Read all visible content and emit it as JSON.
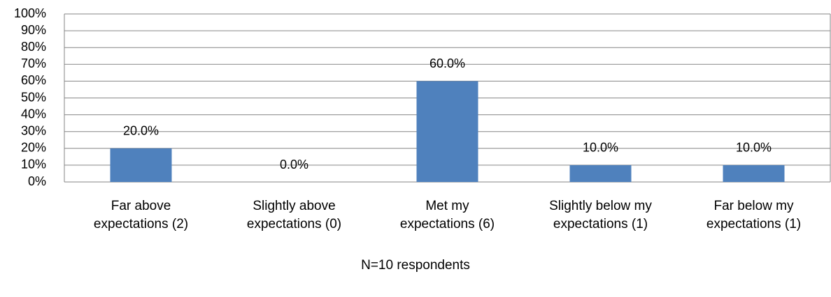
{
  "chart_data": {
    "type": "bar",
    "categories": [
      "Far above\nexpectations (2)",
      "Slightly above\nexpectations (0)",
      "Met my\nexpectations (6)",
      "Slightly below my\nexpectations (1)",
      "Far below my\nexpectations (1)"
    ],
    "values": [
      20,
      0,
      60,
      10,
      10
    ],
    "value_labels": [
      "20.0%",
      "0.0%",
      "60.0%",
      "10.0%",
      "10.0%"
    ],
    "color": "#4f81bd",
    "ylim": [
      0,
      100
    ],
    "yticks": [
      {
        "value": 0,
        "label": "0%"
      },
      {
        "value": 10,
        "label": "10%"
      },
      {
        "value": 20,
        "label": "20%"
      },
      {
        "value": 30,
        "label": "30%"
      },
      {
        "value": 40,
        "label": "40%"
      },
      {
        "value": 50,
        "label": "50%"
      },
      {
        "value": 60,
        "label": "60%"
      },
      {
        "value": 70,
        "label": "70%"
      },
      {
        "value": 80,
        "label": "80%"
      },
      {
        "value": 90,
        "label": "90%"
      },
      {
        "value": 100,
        "label": "100%"
      }
    ],
    "grid": true,
    "x_label": "N=10 respondents"
  }
}
